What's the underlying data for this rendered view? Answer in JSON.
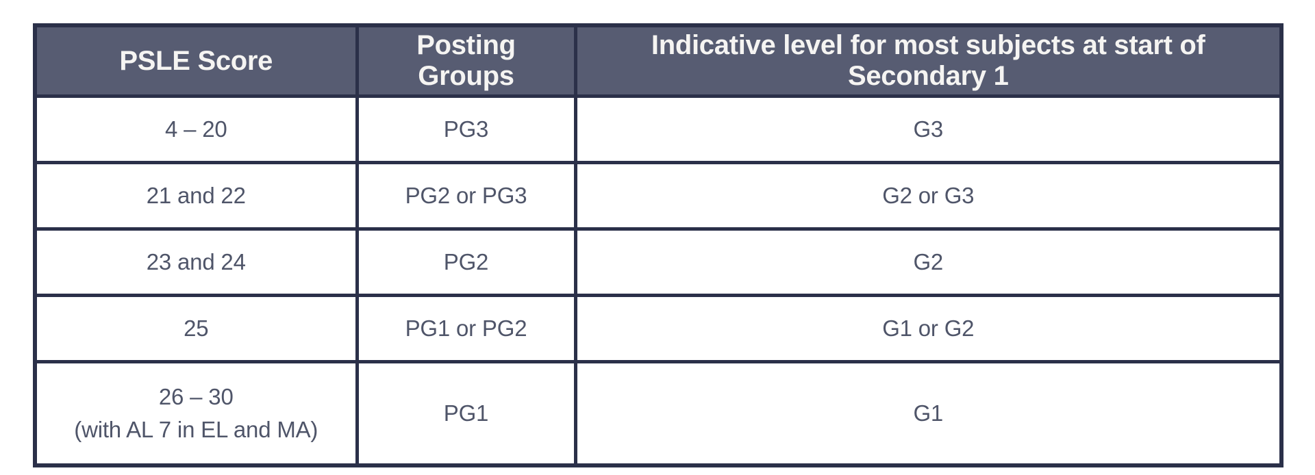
{
  "table": {
    "columns": [
      "PSLE Score",
      "Posting Groups",
      "Indicative level for most subjects at start of Secondary 1"
    ],
    "rows": [
      {
        "cells": [
          "4 – 20",
          "PG3",
          "G3"
        ]
      },
      {
        "cells": [
          "21 and 22",
          "PG2 or PG3",
          "G2 or G3"
        ]
      },
      {
        "cells": [
          "23 and 24",
          "PG2",
          "G2"
        ]
      },
      {
        "cells": [
          "25",
          "PG1 or PG2",
          "G1 or G2"
        ]
      },
      {
        "cells": [
          "26 – 30\n(with AL 7 in EL and MA)",
          "PG1",
          "G1"
        ]
      }
    ],
    "colors": {
      "header_bg": "#575c72",
      "header_text": "#f5f4f2",
      "body_text": "#4f5569",
      "border": "#2b3049",
      "page_bg": "#ffffff"
    }
  }
}
